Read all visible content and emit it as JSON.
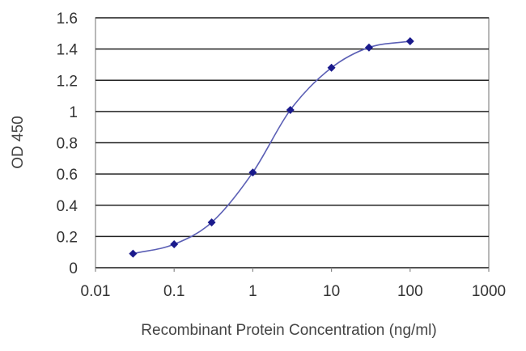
{
  "chart_data": {
    "type": "scatter",
    "title": "",
    "xlabel": "Recombinant Protein Concentration (ng/ml)",
    "ylabel": "OD 450",
    "x_scale": "log",
    "xlim": [
      0.01,
      1000
    ],
    "ylim": [
      0,
      1.6
    ],
    "x_ticks": [
      0.01,
      0.1,
      1,
      10,
      100,
      1000
    ],
    "x_tick_labels": [
      "0.01",
      "0.1",
      "1",
      "10",
      "100",
      "1000"
    ],
    "y_ticks": [
      0,
      0.2,
      0.4,
      0.6,
      0.8,
      1,
      1.2,
      1.4,
      1.6
    ],
    "y_tick_labels": [
      "0",
      "0.2",
      "0.4",
      "0.6",
      "0.8",
      "1",
      "1.2",
      "1.4",
      "1.6"
    ],
    "grid": "horizontal",
    "legend": "none",
    "fit_curve": "sigmoidal",
    "series": [
      {
        "x": [
          0.03,
          0.1,
          0.3,
          1,
          3,
          10,
          30,
          100
        ],
        "y": [
          0.09,
          0.15,
          0.29,
          0.61,
          1.01,
          1.28,
          1.41,
          1.45
        ]
      }
    ],
    "colors": {
      "line": "#5b5fb5",
      "marker": "#1a1a8c",
      "grid": "#222222",
      "frame": "#888888"
    }
  }
}
